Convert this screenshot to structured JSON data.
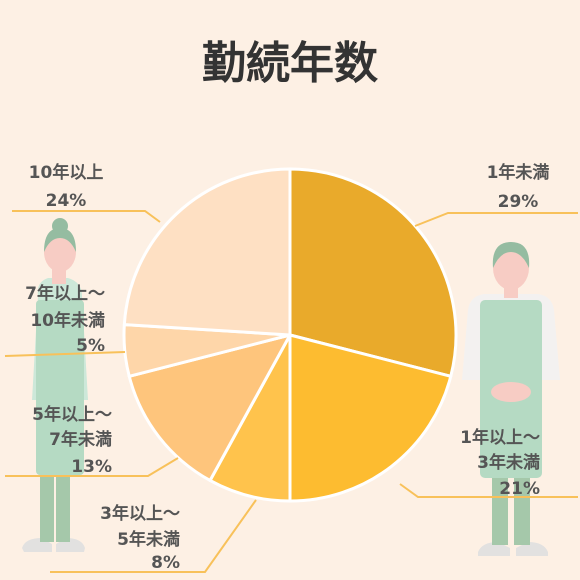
{
  "chart_data": {
    "type": "pie",
    "title": "勤続年数",
    "slices": [
      {
        "name": "1年未満",
        "lines": [
          "1年未満"
        ],
        "value": 29,
        "value_label": "29%",
        "color": "#e9aa2b"
      },
      {
        "name": "1年以上〜3年未満",
        "lines": [
          "1年以上〜",
          "3年未満"
        ],
        "value": 21,
        "value_label": "21%",
        "color": "#fdbc30"
      },
      {
        "name": "3年以上〜5年未満",
        "lines": [
          "3年以上〜",
          "5年未満"
        ],
        "value": 8,
        "value_label": "8%",
        "color": "#ffc34c"
      },
      {
        "name": "5年以上〜7年未満",
        "lines": [
          "5年以上〜",
          "7年未満"
        ],
        "value": 13,
        "value_label": "13%",
        "color": "#fec57c"
      },
      {
        "name": "7年以上〜10年未満",
        "lines": [
          "7年以上〜",
          "10年未満"
        ],
        "value": 5,
        "value_label": "5%",
        "color": "#fed6a9"
      },
      {
        "name": "10年以上",
        "lines": [
          "10年以上"
        ],
        "value": 24,
        "value_label": "24%",
        "color": "#fee0c3"
      }
    ]
  },
  "colors": {
    "background": "#fdf0e4",
    "leader": "#f8c15a",
    "figure_apron": "#aed8c0",
    "figure_skin": "#f7c9c1",
    "figure_hair": "#8ab79a"
  }
}
